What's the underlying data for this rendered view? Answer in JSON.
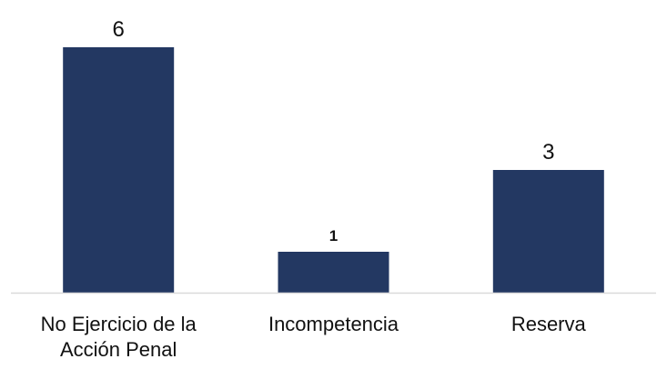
{
  "chart_data": {
    "type": "bar",
    "title": "",
    "xlabel": "",
    "ylabel": "",
    "categories": [
      [
        "No Ejercicio de la",
        "Acción Penal"
      ],
      [
        "Incompetencia"
      ],
      [
        "Reserva"
      ]
    ],
    "values": [
      6,
      1,
      3
    ],
    "data_labels": [
      "6",
      "1",
      "3"
    ],
    "ylim": [
      0,
      6
    ],
    "grid": false,
    "legend": "none",
    "colors": {
      "bar": "#233862",
      "axis": "#d9d9d9",
      "text": "#111111"
    }
  }
}
